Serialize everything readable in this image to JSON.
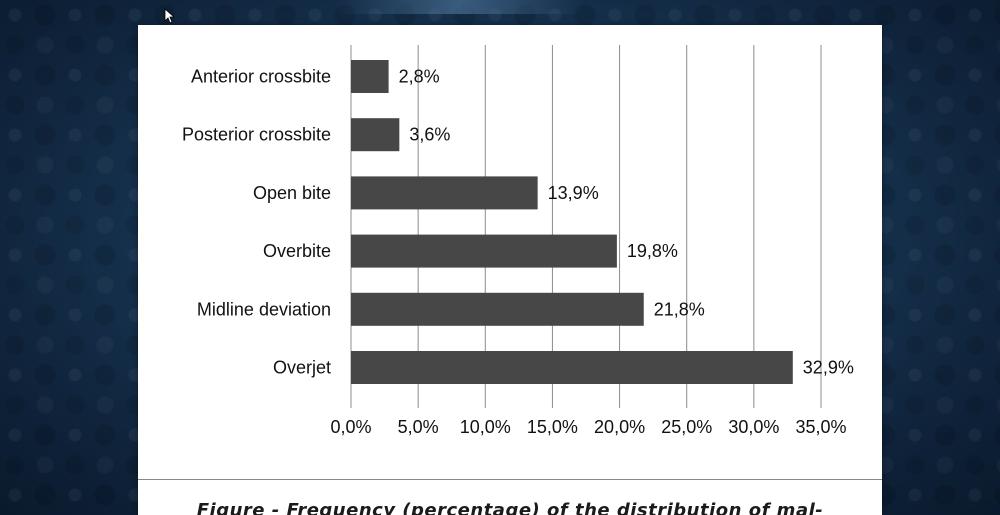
{
  "slide": {
    "caption": "Figure - Frequency (percentage) of the distribution of mal-"
  },
  "chart_data": {
    "type": "bar",
    "orientation": "horizontal",
    "categories": [
      "Anterior crossbite",
      "Posterior crossbite",
      "Open bite",
      "Overbite",
      "Midline deviation",
      "Overjet"
    ],
    "values": [
      2.8,
      3.6,
      13.9,
      19.8,
      21.8,
      32.9
    ],
    "value_labels": [
      "2,8%",
      "3,6%",
      "13,9%",
      "19,8%",
      "21,8%",
      "32,9%"
    ],
    "xlim": [
      0,
      35
    ],
    "xticks": [
      0,
      5,
      10,
      15,
      20,
      25,
      30,
      35
    ],
    "xtick_labels": [
      "0,0%",
      "5,0%",
      "10,0%",
      "15,0%",
      "20,0%",
      "25,0%",
      "30,0%",
      "35,0%"
    ],
    "grid": "vertical",
    "bar_color": "#474747",
    "grid_color": "#8c8c8c"
  }
}
